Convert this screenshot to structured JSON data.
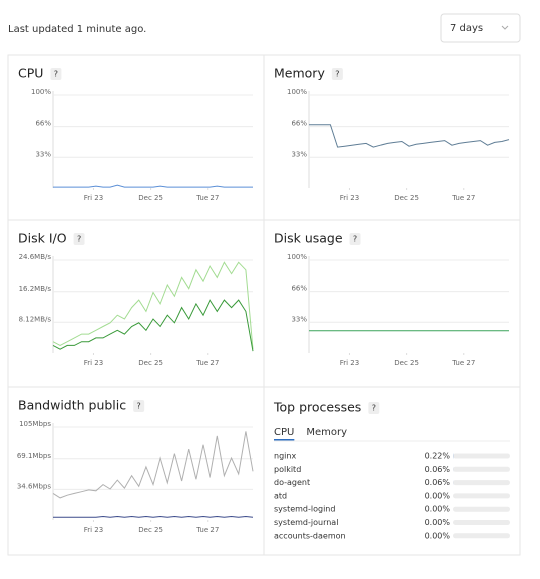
{
  "header": {
    "status": "Last updated 1 minute ago.",
    "range": "7 days"
  },
  "chart_data": [
    {
      "type": "line",
      "title": "CPU",
      "x": [
        0,
        6,
        12,
        18,
        24,
        30,
        36,
        42,
        48,
        54,
        60,
        66,
        72,
        78,
        84,
        90,
        96,
        102,
        108,
        114,
        120,
        126,
        132,
        138,
        144,
        150,
        156,
        162,
        168
      ],
      "xlim": [
        0,
        168
      ],
      "xticks": [
        {
          "value": 34,
          "label": "Fri 23"
        },
        {
          "value": 82,
          "label": "Dec 25"
        },
        {
          "value": 130,
          "label": "Tue 27"
        }
      ],
      "ylim": [
        0,
        100
      ],
      "yticks": [
        {
          "value": 33,
          "label": "33%"
        },
        {
          "value": 66,
          "label": "66%"
        },
        {
          "value": 100,
          "label": "100%"
        }
      ],
      "grid": true,
      "series": [
        {
          "color": "#5b8fd6",
          "values": [
            1,
            1,
            1,
            1,
            1,
            1,
            2,
            1,
            1,
            3,
            1,
            1,
            1,
            1,
            1,
            2,
            1,
            1,
            1,
            1,
            1,
            1,
            1,
            2,
            1,
            1,
            1,
            1,
            1
          ]
        }
      ]
    },
    {
      "type": "line",
      "title": "Memory",
      "x": [
        0,
        6,
        12,
        18,
        24,
        30,
        36,
        42,
        48,
        54,
        60,
        66,
        72,
        78,
        84,
        90,
        96,
        102,
        108,
        114,
        120,
        126,
        132,
        138,
        144,
        150,
        156,
        162,
        168
      ],
      "xlim": [
        0,
        168
      ],
      "xticks": [
        {
          "value": 34,
          "label": "Fri 23"
        },
        {
          "value": 82,
          "label": "Dec 25"
        },
        {
          "value": 130,
          "label": "Tue 27"
        }
      ],
      "ylim": [
        0,
        100
      ],
      "yticks": [
        {
          "value": 33,
          "label": "33%"
        },
        {
          "value": 66,
          "label": "66%"
        },
        {
          "value": 100,
          "label": "100%"
        }
      ],
      "grid": true,
      "series": [
        {
          "color": "#5f7d95",
          "values": [
            68,
            68,
            68,
            68,
            44,
            45,
            46,
            47,
            48,
            44,
            46,
            48,
            49,
            50,
            45,
            47,
            48,
            49,
            50,
            51,
            46,
            48,
            49,
            50,
            51,
            46,
            49,
            50,
            52
          ]
        }
      ]
    },
    {
      "type": "line",
      "title": "Disk I/O",
      "x": [
        0,
        6,
        12,
        18,
        24,
        30,
        36,
        42,
        48,
        54,
        60,
        66,
        72,
        78,
        84,
        90,
        96,
        102,
        108,
        114,
        120,
        126,
        132,
        138,
        144,
        150,
        156,
        162,
        168
      ],
      "xlim": [
        0,
        168
      ],
      "xticks": [
        {
          "value": 34,
          "label": "Fri 23"
        },
        {
          "value": 82,
          "label": "Dec 25"
        },
        {
          "value": 130,
          "label": "Tue 27"
        }
      ],
      "ylim": [
        0,
        24.6
      ],
      "yticks": [
        {
          "value": 8.12,
          "label": "8.12MB/s"
        },
        {
          "value": 16.2,
          "label": "16.2MB/s"
        },
        {
          "value": 24.6,
          "label": "24.6MB/s"
        }
      ],
      "grid": true,
      "series": [
        {
          "color": "#a3dc92",
          "values": [
            3,
            2,
            3,
            4,
            5,
            5,
            6,
            7,
            8,
            10,
            9,
            12,
            14,
            11,
            16,
            13,
            18,
            15,
            20,
            17,
            22,
            19,
            23,
            20,
            24,
            21,
            24,
            22,
            1
          ]
        },
        {
          "color": "#3a9a3a",
          "values": [
            2,
            1,
            2,
            2,
            3,
            3,
            4,
            4,
            5,
            6,
            5,
            7,
            8,
            6,
            9,
            7,
            10,
            8,
            12,
            9,
            13,
            10,
            14,
            11,
            14,
            12,
            14,
            11,
            0.5
          ]
        }
      ]
    },
    {
      "type": "line",
      "title": "Disk usage",
      "x": [
        0,
        168
      ],
      "xlim": [
        0,
        168
      ],
      "xticks": [
        {
          "value": 34,
          "label": "Fri 23"
        },
        {
          "value": 82,
          "label": "Dec 25"
        },
        {
          "value": 130,
          "label": "Tue 27"
        }
      ],
      "ylim": [
        0,
        100
      ],
      "yticks": [
        {
          "value": 33,
          "label": "33%"
        },
        {
          "value": 66,
          "label": "66%"
        },
        {
          "value": 100,
          "label": "100%"
        }
      ],
      "grid": true,
      "series": [
        {
          "color": "#3aa35a",
          "values": [
            24,
            24
          ]
        }
      ]
    },
    {
      "type": "line",
      "title": "Bandwidth public",
      "x": [
        0,
        6,
        12,
        18,
        24,
        30,
        36,
        42,
        48,
        54,
        60,
        66,
        72,
        78,
        84,
        90,
        96,
        102,
        108,
        114,
        120,
        126,
        132,
        138,
        144,
        150,
        156,
        162,
        168
      ],
      "xlim": [
        0,
        168
      ],
      "xticks": [
        {
          "value": 34,
          "label": "Fri 23"
        },
        {
          "value": 82,
          "label": "Dec 25"
        },
        {
          "value": 130,
          "label": "Tue 27"
        }
      ],
      "ylim": [
        0,
        105
      ],
      "yticks": [
        {
          "value": 34.6,
          "label": "34.6Mbps"
        },
        {
          "value": 69.1,
          "label": "69.1Mbps"
        },
        {
          "value": 105,
          "label": "105Mbps"
        }
      ],
      "grid": true,
      "series": [
        {
          "color": "#b0b0b0",
          "values": [
            30,
            25,
            28,
            30,
            32,
            34,
            33,
            40,
            35,
            45,
            36,
            50,
            38,
            60,
            40,
            70,
            42,
            75,
            44,
            80,
            46,
            85,
            48,
            95,
            50,
            70,
            52,
            100,
            55
          ]
        },
        {
          "color": "#3b4a8a",
          "values": [
            3,
            3,
            3,
            3,
            3,
            3,
            3,
            4,
            3,
            4,
            3,
            4,
            3,
            4,
            3,
            4,
            3,
            4,
            3,
            4,
            3,
            4,
            3,
            4,
            3,
            4,
            3,
            4,
            3
          ]
        }
      ]
    }
  ],
  "top_processes": {
    "title": "Top processes",
    "tabs": [
      "CPU",
      "Memory"
    ],
    "xlim": [
      0,
      100
    ],
    "rows": [
      {
        "name": "nginx",
        "value": 0.22,
        "label": "0.22%"
      },
      {
        "name": "polkitd",
        "value": 0.06,
        "label": "0.06%"
      },
      {
        "name": "do-agent",
        "value": 0.06,
        "label": "0.06%"
      },
      {
        "name": "atd",
        "value": 0,
        "label": "0.00%"
      },
      {
        "name": "systemd-logind",
        "value": 0,
        "label": "0.00%"
      },
      {
        "name": "systemd-journal",
        "value": 0,
        "label": "0.00%"
      },
      {
        "name": "accounts-daemon",
        "value": 0,
        "label": "0.00%"
      }
    ]
  }
}
